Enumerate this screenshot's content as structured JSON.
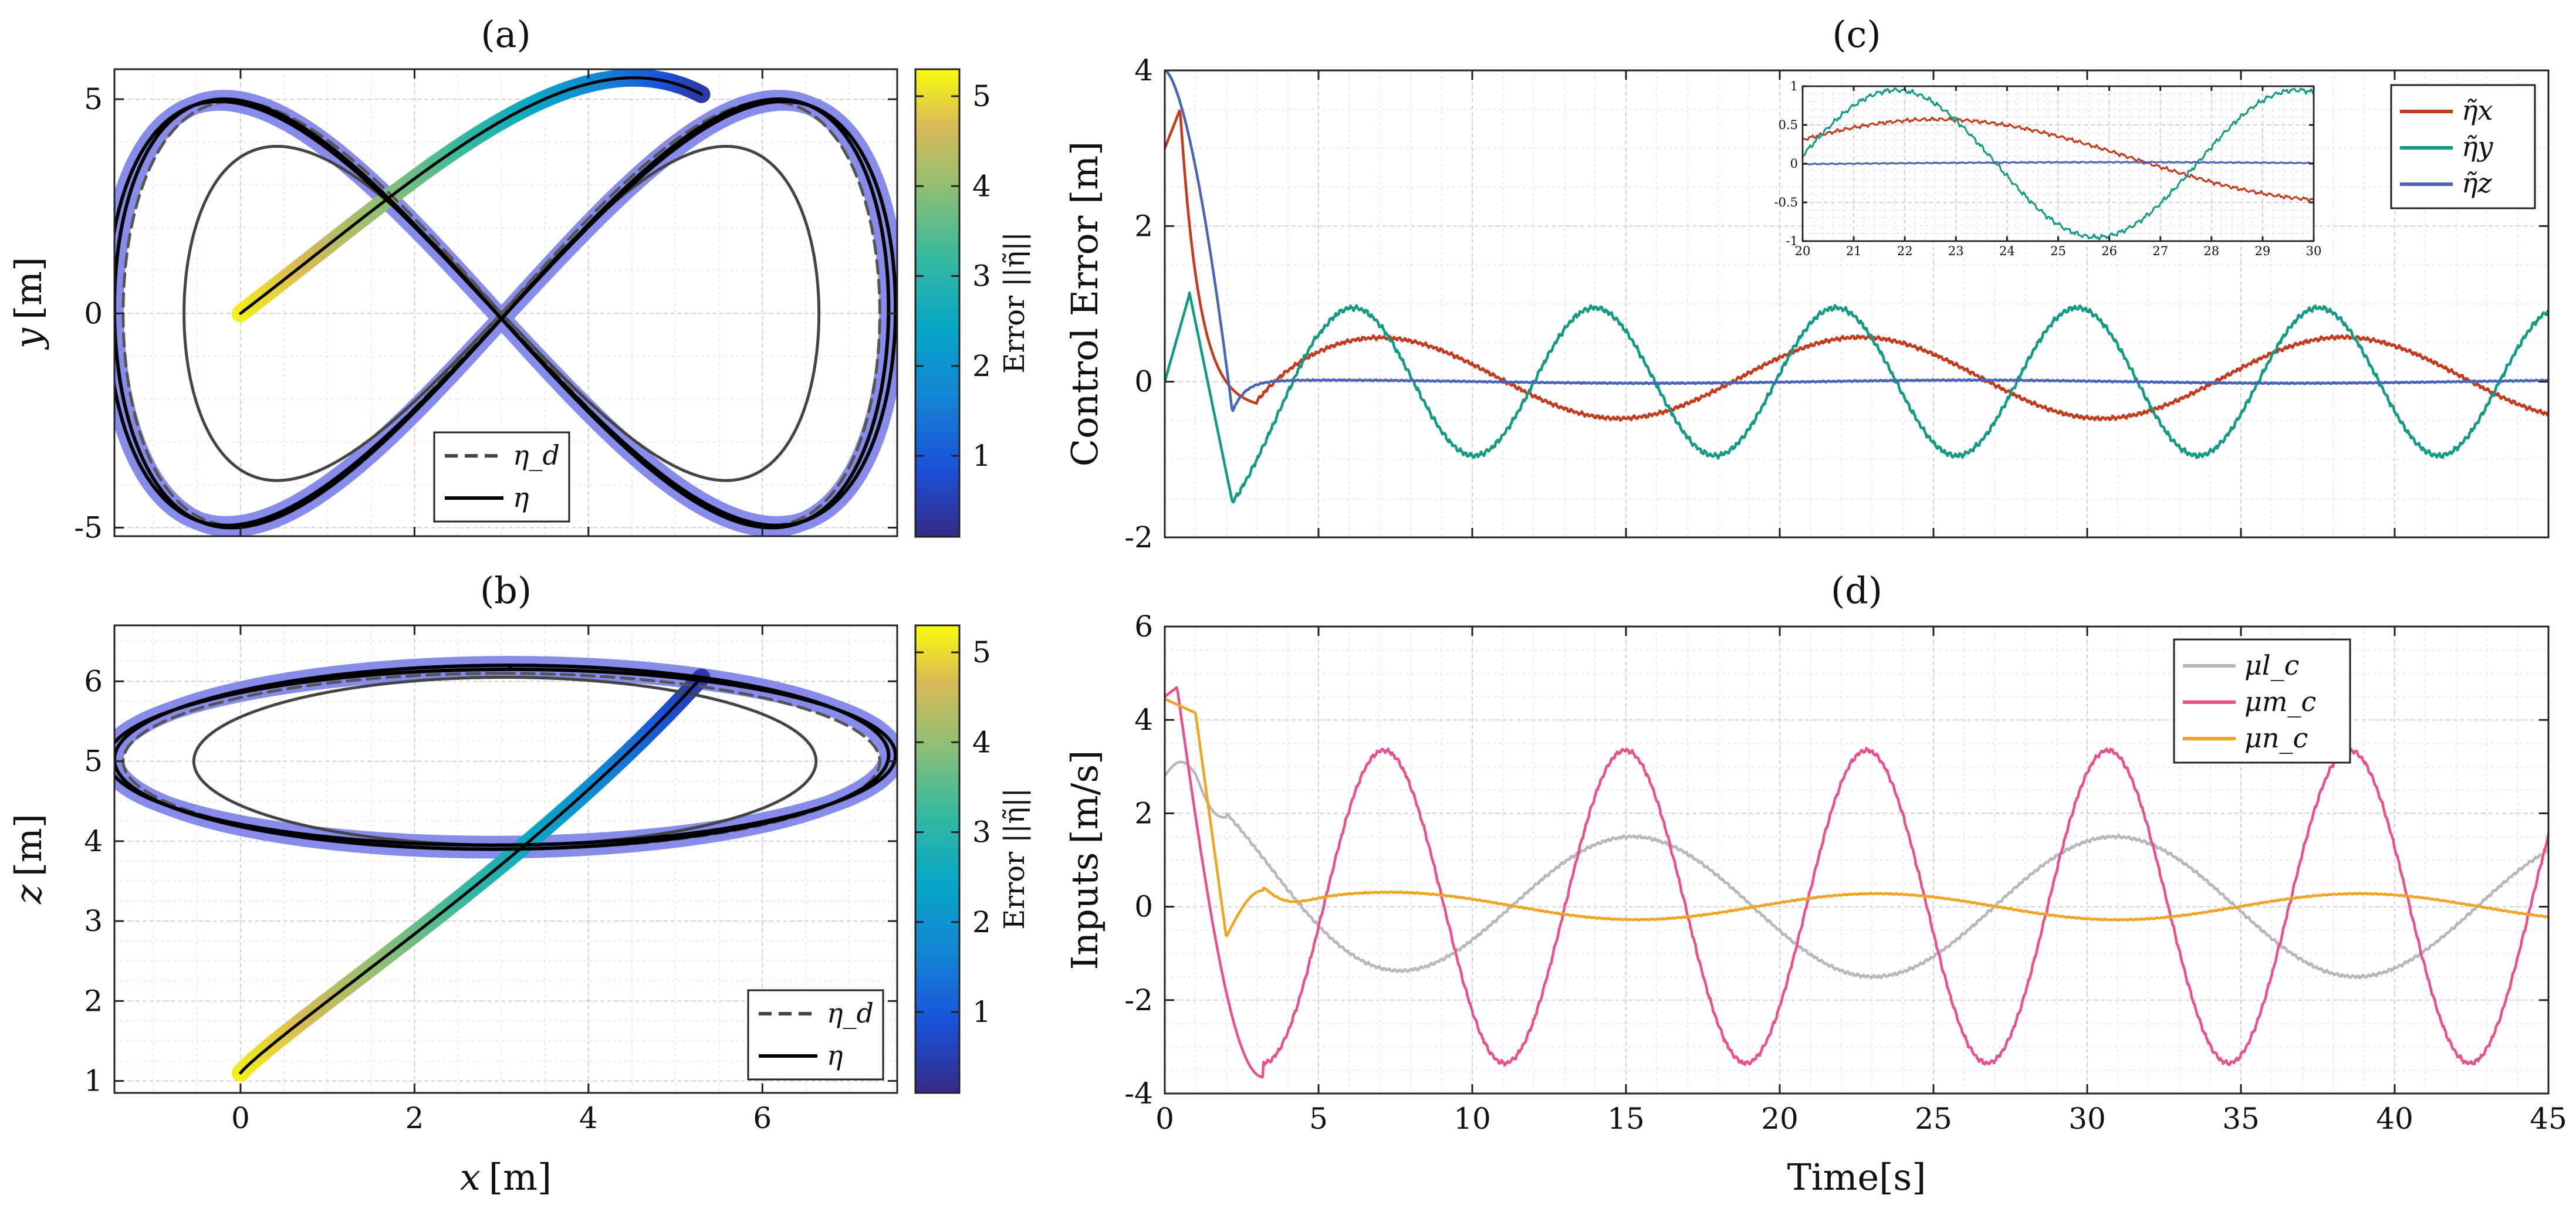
{
  "chart_data": [
    {
      "id": "a",
      "type": "line",
      "title": "(a)",
      "xlabel": "",
      "ylabel": "y [m]",
      "ylabel_name": "y",
      "ylabel_unit": "[m]",
      "xlim": [
        -1.45,
        7.55
      ],
      "ylim": [
        -5.2,
        5.7
      ],
      "xticks": [
        0,
        2,
        4,
        6
      ],
      "xtick_labels_visible": false,
      "yticks": [
        -5,
        0,
        5
      ],
      "ytick_labels": [
        "-5",
        "0",
        "5"
      ],
      "grid": true,
      "colorbar": {
        "label": "Error ||η̃||",
        "range": [
          0.1,
          5.3
        ],
        "ticks": [
          1,
          2,
          3,
          4,
          5
        ],
        "tick_labels": [
          "1",
          "2",
          "3",
          "4",
          "5"
        ]
      },
      "legend": {
        "placement": "bottom-center",
        "entries": [
          "η_d",
          "η"
        ],
        "styles": [
          "dashed",
          "solid"
        ]
      },
      "series": [
        {
          "name": "η_d",
          "style": "dashed",
          "description": "figure-eight reference: x = 3 + 4.3·sin(t), y = 5·sin(2t)"
        },
        {
          "name": "η",
          "style": "solid",
          "description": "actual trajectory starting at (0,0), error colored"
        }
      ]
    },
    {
      "id": "b",
      "type": "line",
      "title": "(b)",
      "xlabel": "x [m]",
      "xlabel_name": "x",
      "xlabel_unit": "[m]",
      "ylabel": "z [m]",
      "ylabel_name": "z",
      "ylabel_unit": "[m]",
      "xlim": [
        -1.45,
        7.55
      ],
      "ylim": [
        0.85,
        6.7
      ],
      "xticks": [
        0,
        2,
        4,
        6
      ],
      "xtick_labels": [
        "0",
        "2",
        "4",
        "6"
      ],
      "yticks": [
        1,
        2,
        3,
        4,
        5,
        6
      ],
      "ytick_labels": [
        "1",
        "2",
        "3",
        "4",
        "5",
        "6"
      ],
      "grid": true,
      "colorbar": {
        "label": "Error ||η̃||",
        "range": [
          0.1,
          5.3
        ],
        "ticks": [
          1,
          2,
          3,
          4,
          5
        ],
        "tick_labels": [
          "1",
          "2",
          "3",
          "4",
          "5"
        ]
      },
      "legend": {
        "placement": "bottom-right",
        "entries": [
          "η_d",
          "η"
        ],
        "styles": [
          "dashed",
          "solid"
        ]
      },
      "series": [
        {
          "name": "η_d",
          "style": "dashed",
          "description": "x-z projection: z = 5 + 1.3·sin(t)·sign-swept"
        },
        {
          "name": "η",
          "style": "solid",
          "description": "actual trajectory from (0,1.1)"
        }
      ]
    },
    {
      "id": "c",
      "type": "line",
      "title": "(c)",
      "xlabel": "",
      "ylabel": "Control Error [m]",
      "ylabel_name": "Control Error",
      "ylabel_unit": "[m]",
      "xlim": [
        0,
        45
      ],
      "ylim": [
        -2,
        4
      ],
      "xticks": [
        0,
        5,
        10,
        15,
        20,
        25,
        30,
        35,
        40,
        45
      ],
      "xtick_labels_visible": false,
      "yticks": [
        -2,
        0,
        2,
        4
      ],
      "ytick_labels": [
        "-2",
        "0",
        "2",
        "4"
      ],
      "grid": true,
      "legend": {
        "placement": "top-right",
        "entries": [
          "η̃x",
          "η̃y",
          "η̃z"
        ]
      },
      "series": [
        {
          "name": "η̃x",
          "color": "#c43a1c",
          "approx": "starts 3.0, peaks 3.5 at t=0.5, drops to -0.35 at t=3, then oscillates ±0.55 with period ≈15.7 s"
        },
        {
          "name": "η̃y",
          "color": "#129a84",
          "approx": "starts 0, 1.15 at t=0.8, -1.55 at t=2.2, then sinusoid amplitude ≈0.95 period ≈7.85 s"
        },
        {
          "name": "η̃z",
          "color": "#4a64b8",
          "approx": "starts 4.0, decays to -0.4 at t=2.2, settles ≈0"
        }
      ],
      "inset": {
        "xlim": [
          20,
          30
        ],
        "ylim": [
          -1,
          1
        ],
        "xticks": [
          20,
          21,
          22,
          23,
          24,
          25,
          26,
          27,
          28,
          29,
          30
        ],
        "xtick_labels": [
          "20",
          "21",
          "22",
          "23",
          "24",
          "25",
          "26",
          "27",
          "28",
          "29",
          "30"
        ],
        "yticks": [
          -1,
          -0.5,
          0,
          0.5,
          1
        ],
        "ytick_labels": [
          "-1",
          "-0.5",
          "0",
          "0.5",
          "1"
        ]
      }
    },
    {
      "id": "d",
      "type": "line",
      "title": "(d)",
      "xlabel": "Time[s]",
      "xlabel_name": "Time",
      "xlabel_unit": "[s]",
      "ylabel": "Inputs [m/s]",
      "ylabel_name": "Inputs",
      "ylabel_unit": "[m/s]",
      "xlim": [
        0,
        45
      ],
      "ylim": [
        -4,
        6
      ],
      "xticks": [
        0,
        5,
        10,
        15,
        20,
        25,
        30,
        35,
        40,
        45
      ],
      "xtick_labels": [
        "0",
        "5",
        "10",
        "15",
        "20",
        "25",
        "30",
        "35",
        "40",
        "45"
      ],
      "yticks": [
        -4,
        -2,
        0,
        2,
        4,
        6
      ],
      "ytick_labels": [
        "-4",
        "-2",
        "0",
        "2",
        "4",
        "6"
      ],
      "grid": true,
      "legend": {
        "placement": "top-right",
        "entries": [
          "μl_c",
          "μm_c",
          "μn_c"
        ]
      },
      "series": [
        {
          "name": "μl_c",
          "color": "#b8b8b8",
          "approx": "starts 2.8, ±1.5 sinusoid period ≈15.7 s, peaks near t=15.2 and 31"
        },
        {
          "name": "μm_c",
          "color": "#e8508f",
          "approx": "starts 4.5, peak 4.7 at 0.4, then sinusoid amplitude ≈3.35 period ≈7.85 s, peaks t≈7.2,15.1,23,30.9,38.7"
        },
        {
          "name": "μn_c",
          "color": "#f3a322",
          "approx": "starts 4.45, drops to -0.65 at t=2, settles ≈0, slow ±0.3 sinusoid"
        }
      ]
    }
  ]
}
